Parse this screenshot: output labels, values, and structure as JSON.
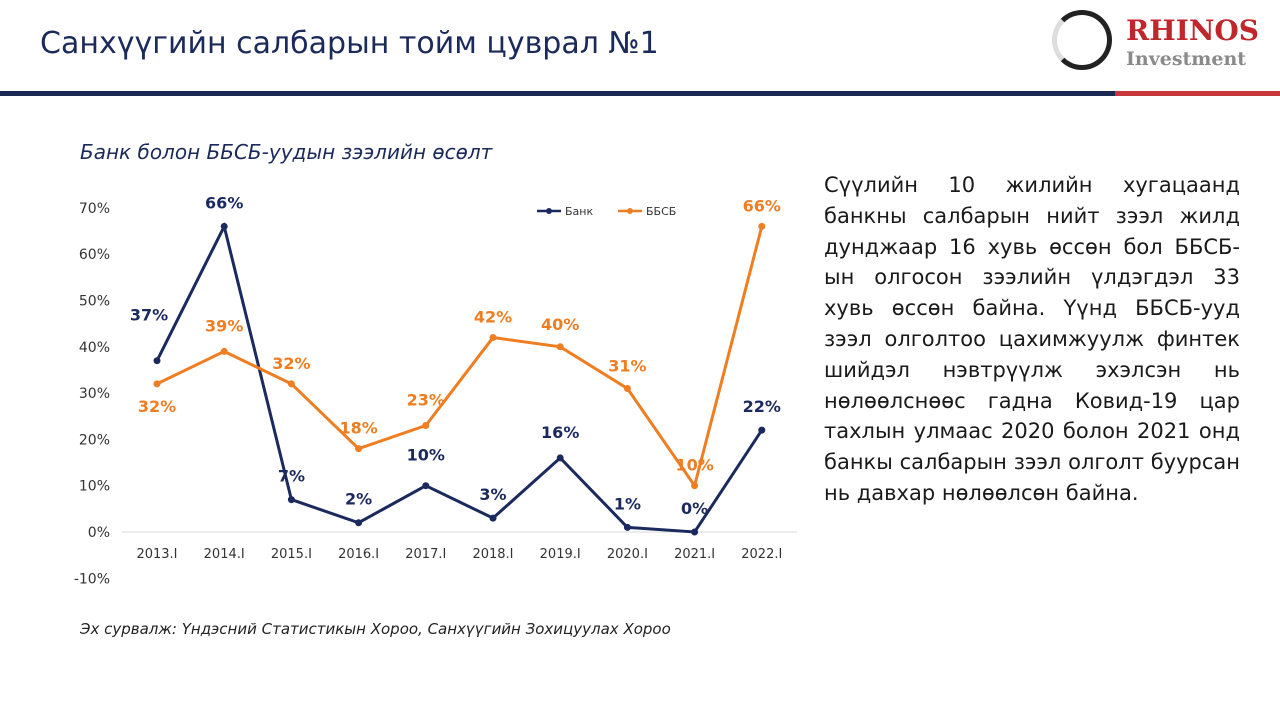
{
  "header": {
    "title": "Санхүүгийн салбарын тойм цуврал №1",
    "logo_brand": "RHINOS",
    "logo_sub": "Investment"
  },
  "colors": {
    "bank": "#1b2a5e",
    "nbfi": "#ef7d22"
  },
  "chart_data": {
    "type": "line",
    "title": "Банк болон ББСБ-уудын зээлийн өсөлт",
    "categories": [
      "2013.I",
      "2014.I",
      "2015.I",
      "2016.I",
      "2017.I",
      "2018.I",
      "2019.I",
      "2020.I",
      "2021.I",
      "2022.I"
    ],
    "series": [
      {
        "name": "Банк",
        "values": [
          37,
          66,
          7,
          2,
          10,
          3,
          16,
          1,
          0,
          22
        ],
        "labels": [
          "37%",
          "66%",
          "7%",
          "2%",
          "10%",
          "3%",
          "16%",
          "1%",
          "0%",
          "22%"
        ]
      },
      {
        "name": "ББСБ",
        "values": [
          32,
          39,
          32,
          18,
          23,
          42,
          40,
          31,
          10,
          66
        ],
        "labels": [
          "32%",
          "39%",
          "32%",
          "18%",
          "23%",
          "42%",
          "40%",
          "31%",
          "10%",
          "66%"
        ]
      }
    ],
    "yticks": [
      "70%",
      "60%",
      "50%",
      "40%",
      "30%",
      "20%",
      "10%",
      "0%",
      "-10%"
    ],
    "ylim": [
      -10,
      70
    ],
    "legend": "top-right",
    "grid": false
  },
  "paragraph": "Сүүлийн 10 жилийн хугацаанд банкны салбарын нийт зээл жилд дунджаар 16 хувь өссөн бол ББСБ-ын олгосон зээлийн үлдэгдэл 33 хувь өссөн байна. Үүнд ББСБ-ууд зээл олголтоо цахимжуулж финтек шийдэл нэвтрүүлж эхэлсэн нь нөлөөлснөөс гадна Ковид-19 цар тахлын улмаас 2020 болон 2021 онд банкы салбарын зээл олголт буурсан нь давхар нөлөөлсөн байна.",
  "source": "Эх сурвалж: Үндэсний Статистикын Хороо, Санхүүгийн Зохицуулах Хороо"
}
